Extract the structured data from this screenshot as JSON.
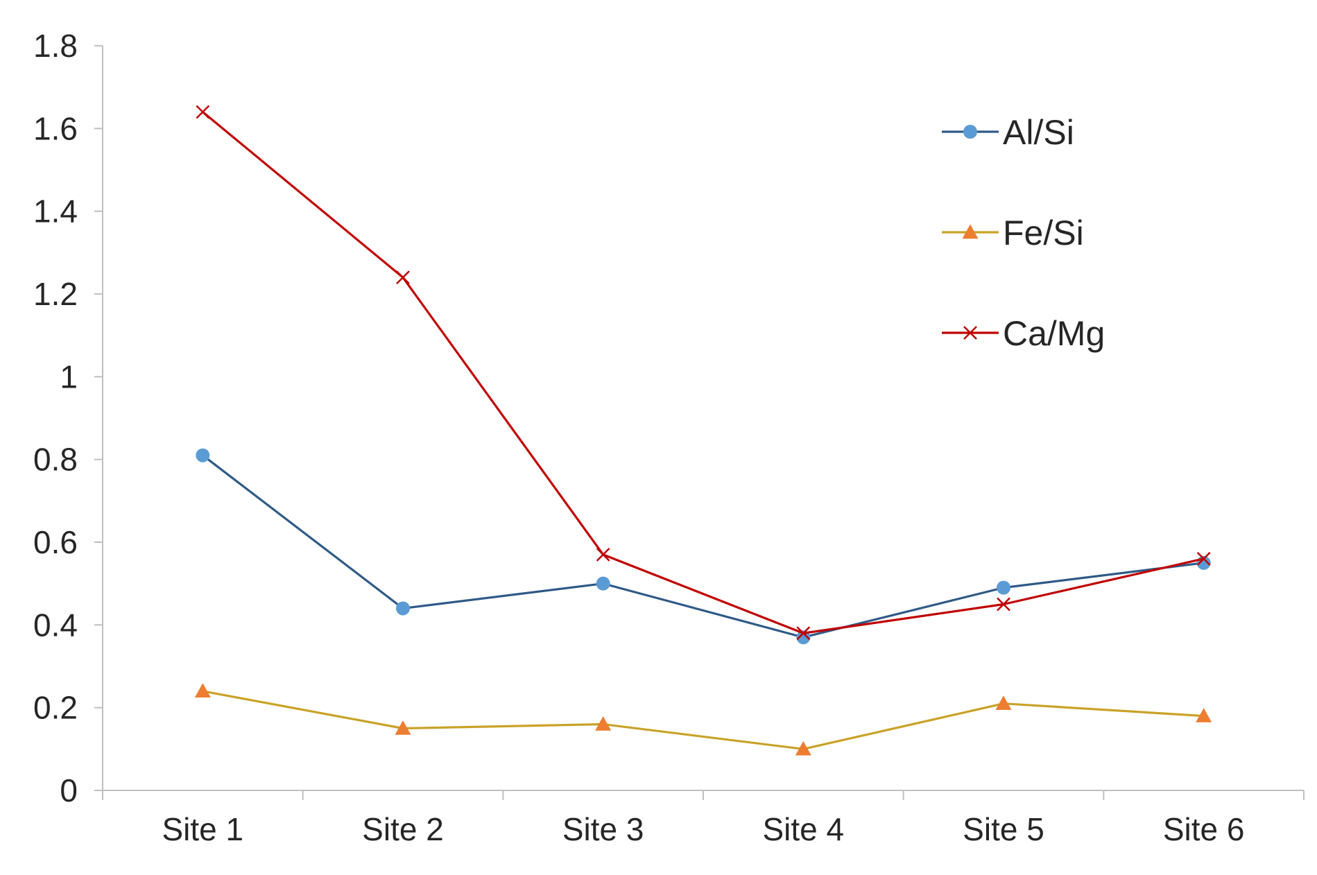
{
  "chart_data": {
    "type": "line",
    "title": "",
    "xlabel": "",
    "ylabel": "",
    "categories": [
      "Site 1",
      "Site 2",
      "Site 3",
      "Site 4",
      "Site 5",
      "Site 6"
    ],
    "ylim": [
      0,
      1.8
    ],
    "yticks": [
      "0",
      "0.2",
      "0.4",
      "0.6",
      "0.8",
      "1",
      "1.2",
      "1.4",
      "1.6",
      "1.8"
    ],
    "grid": false,
    "legend_position": "top-right",
    "series": [
      {
        "name": "Al/Si",
        "values": [
          0.81,
          0.44,
          0.5,
          0.37,
          0.49,
          0.55
        ],
        "color": "#2e5a87",
        "marker_color": "#5b9bd5",
        "marker": "circle"
      },
      {
        "name": "Fe/Si",
        "values": [
          0.24,
          0.15,
          0.16,
          0.1,
          0.21,
          0.18
        ],
        "color": "#c9a227",
        "marker_color": "#ed7d31",
        "marker": "triangle"
      },
      {
        "name": "Ca/Mg",
        "values": [
          1.64,
          1.24,
          0.57,
          0.38,
          0.45,
          0.56
        ],
        "color": "#c00000",
        "marker_color": "#c00000",
        "marker": "x"
      }
    ]
  }
}
